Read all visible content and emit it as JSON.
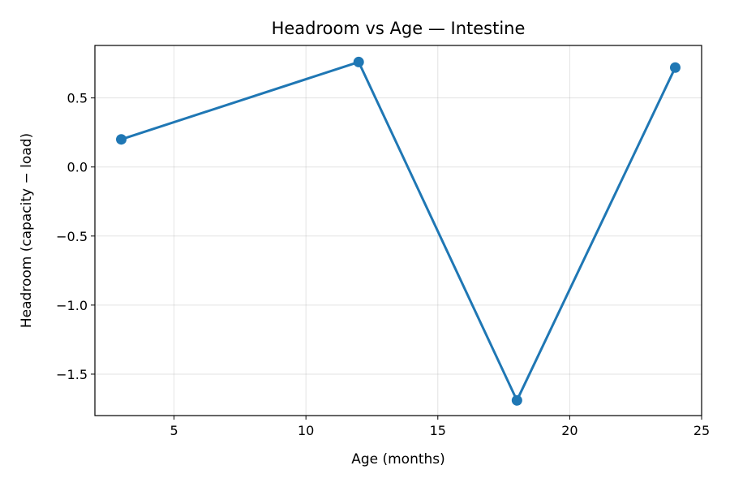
{
  "chart_data": {
    "type": "line",
    "title": "Headroom vs Age — Intestine",
    "xlabel": "Age (months)",
    "ylabel": "Headroom (capacity − load)",
    "xlim": [
      2,
      25
    ],
    "ylim": [
      -1.8,
      0.88
    ],
    "xticks": [
      5,
      10,
      15,
      20,
      25
    ],
    "xtick_labels": [
      "5",
      "10",
      "15",
      "20",
      "25"
    ],
    "yticks": [
      0.5,
      0.0,
      -0.5,
      -1.0,
      -1.5
    ],
    "ytick_labels": [
      "0.5",
      "0.0",
      "−0.5",
      "−1.0",
      "−1.5"
    ],
    "grid": true,
    "series": [
      {
        "color": "#1f77b4",
        "x": [
          3,
          12,
          18,
          24
        ],
        "y": [
          0.2,
          0.76,
          -1.69,
          0.72
        ]
      }
    ]
  }
}
